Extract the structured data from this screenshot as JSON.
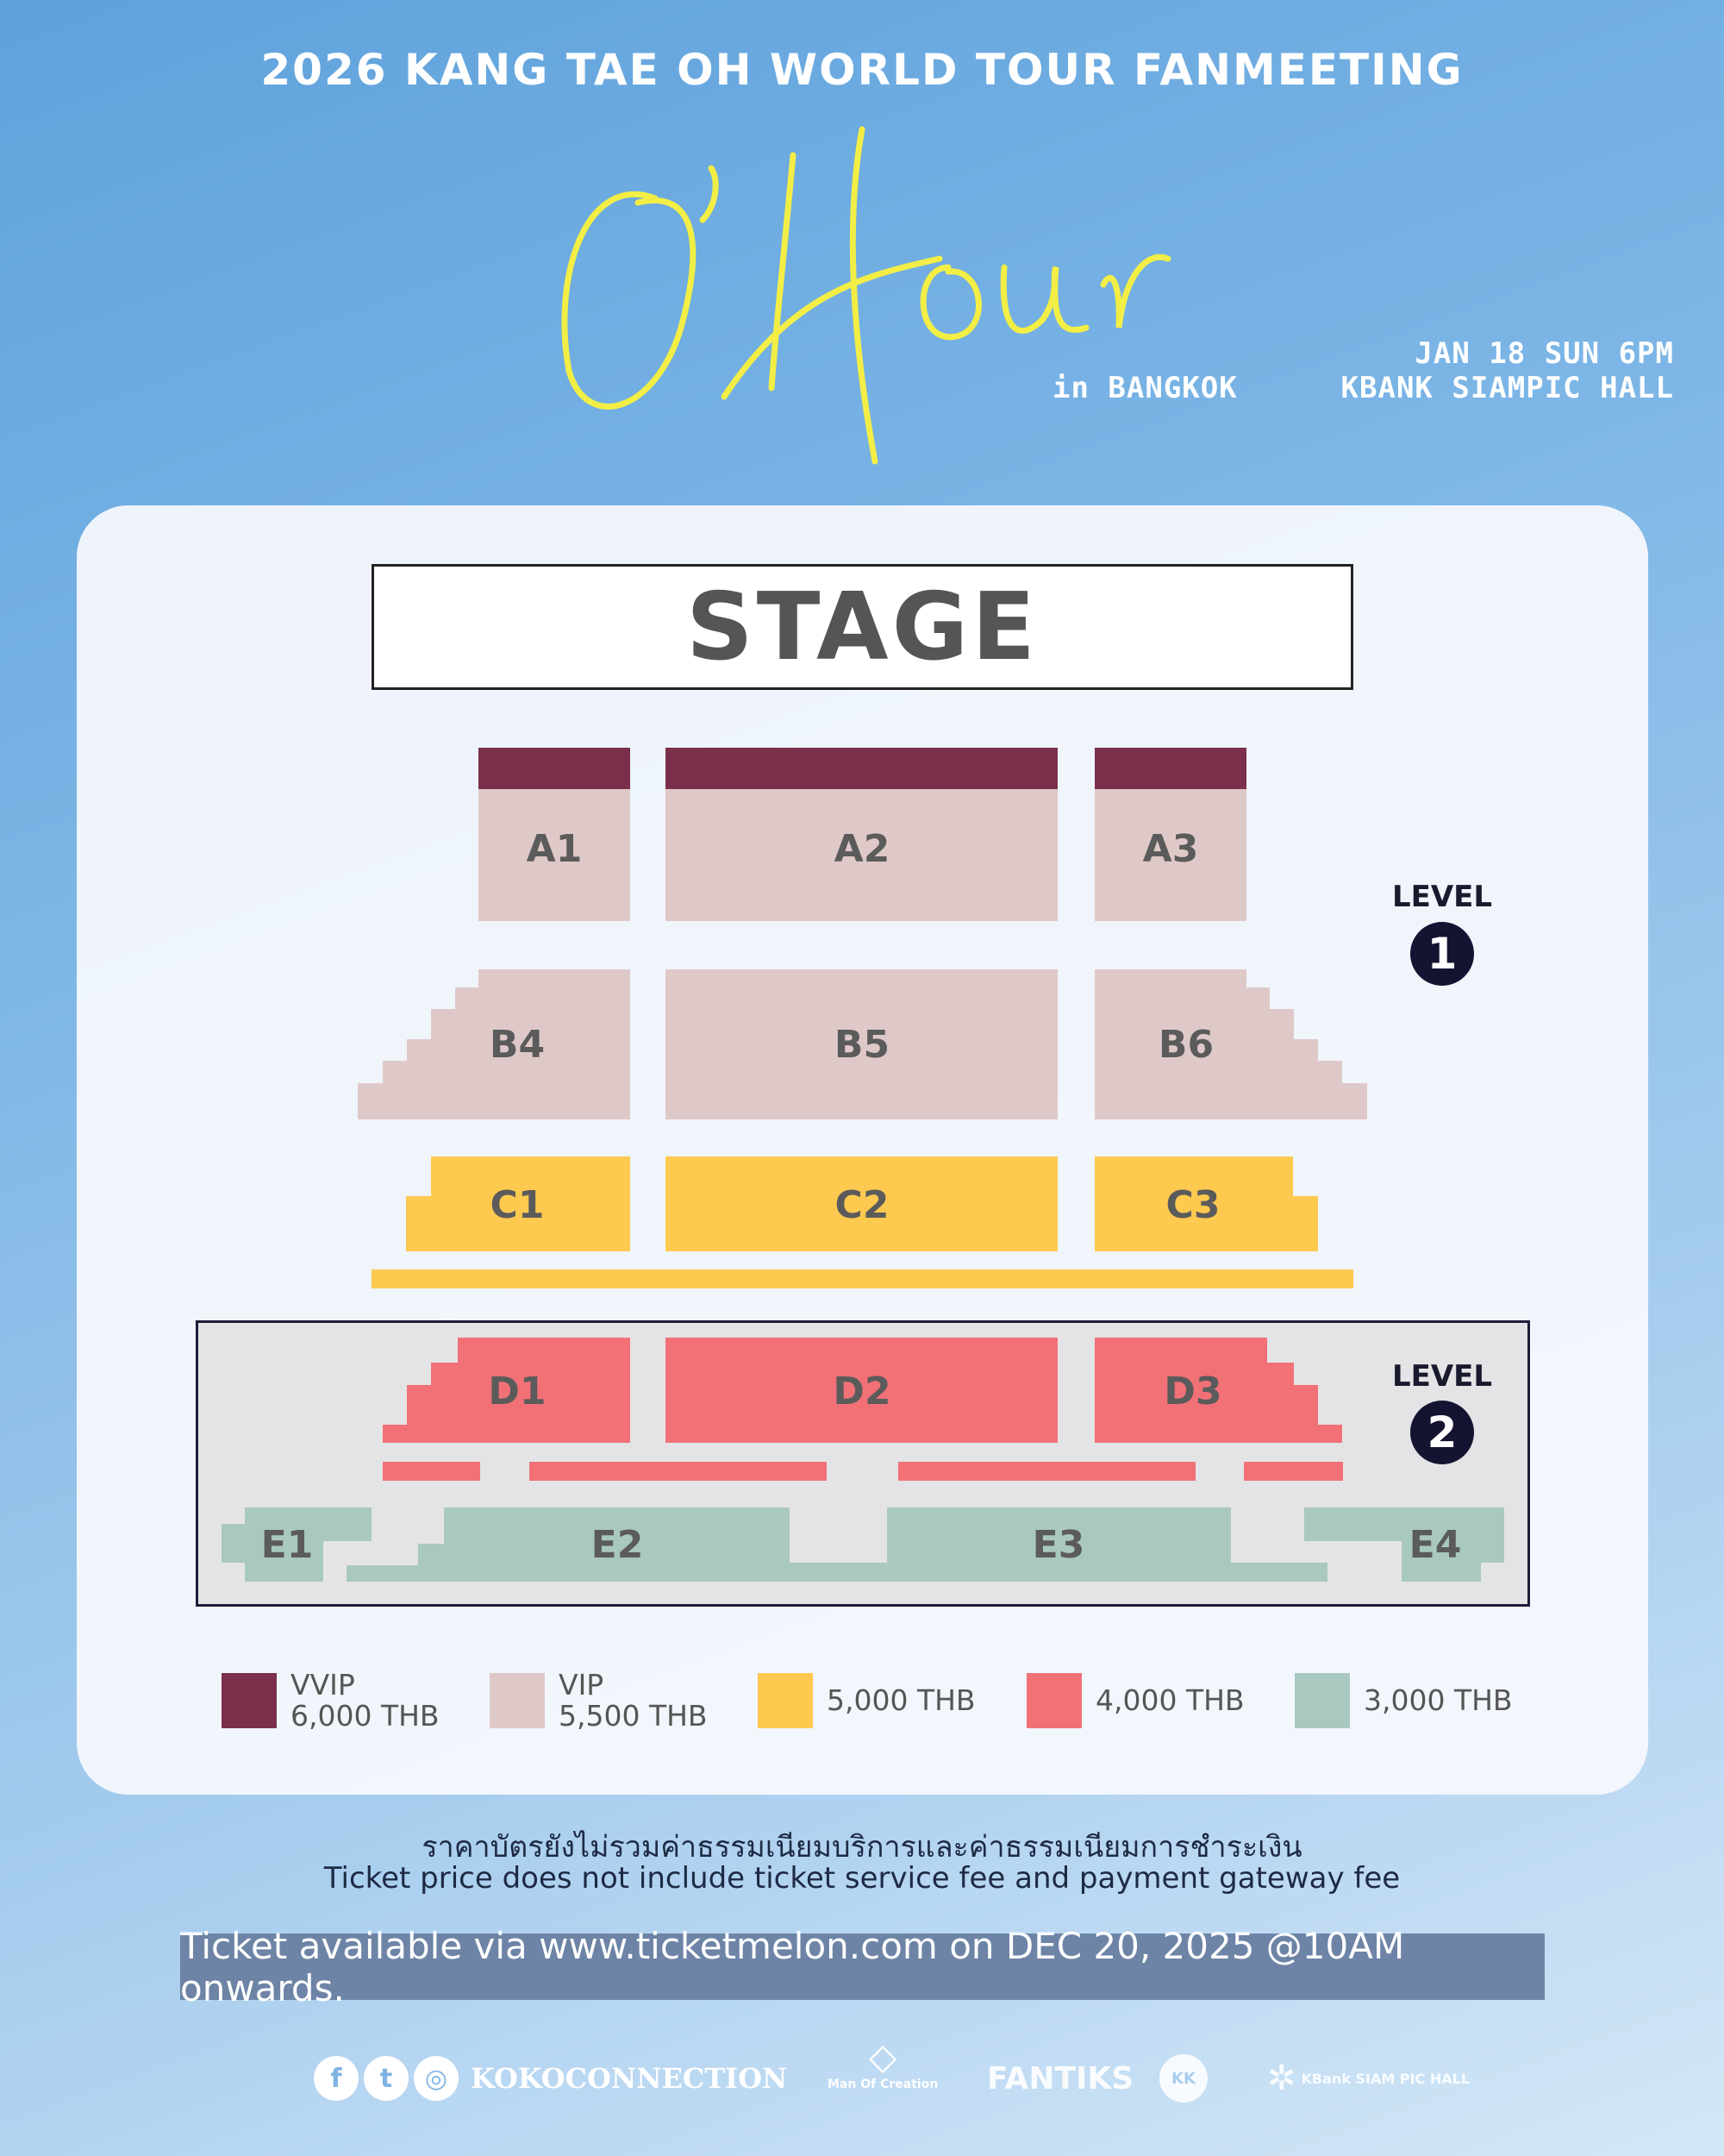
{
  "header": {
    "title": "2026 KANG TAE OH WORLD TOUR FANMEETING",
    "logo_text": "O'Hour",
    "location": "in BANGKOK",
    "date": "JAN 18 SUN 6PM",
    "venue": "KBANK SIAMPIC HALL"
  },
  "map": {
    "stage": "STAGE",
    "level1": {
      "label": "LEVEL",
      "number": "1"
    },
    "level2": {
      "label": "LEVEL",
      "number": "2"
    },
    "sections": {
      "A1": "A1",
      "A2": "A2",
      "A3": "A3",
      "B4": "B4",
      "B5": "B5",
      "B6": "B6",
      "C1": "C1",
      "C2": "C2",
      "C3": "C3",
      "D1": "D1",
      "D2": "D2",
      "D3": "D3",
      "E1": "E1",
      "E2": "E2",
      "E3": "E3",
      "E4": "E4"
    }
  },
  "legend": [
    {
      "tier": "VVIP",
      "price": "6,000 THB",
      "color": "#7a2f4b"
    },
    {
      "tier": "VIP",
      "price": "5,500 THB",
      "color": "#dfc9c8"
    },
    {
      "tier": "",
      "price": "5,000 THB",
      "color": "#fec94f"
    },
    {
      "tier": "",
      "price": "4,000 THB",
      "color": "#f27177"
    },
    {
      "tier": "",
      "price": "3,000 THB",
      "color": "#a9c8bf"
    }
  ],
  "notes": {
    "thai": "ราคาบัตรยังไม่รวมค่าธรรมเนียมบริการและค่าธรรมเนียมการชำระเงิน",
    "english": "Ticket price does not include ticket service fee and payment gateway fee"
  },
  "banner": "Ticket available via www.ticketmelon.com on DEC 20, 2025 @10AM onwards.",
  "footer": {
    "social": [
      "facebook-icon",
      "twitter-icon",
      "instagram-icon"
    ],
    "handle": "KOKOCONNECTION",
    "logos": [
      "Man Of Creation",
      "FANTIKS",
      "KK",
      "KBank SIAM PIC HALL"
    ]
  }
}
